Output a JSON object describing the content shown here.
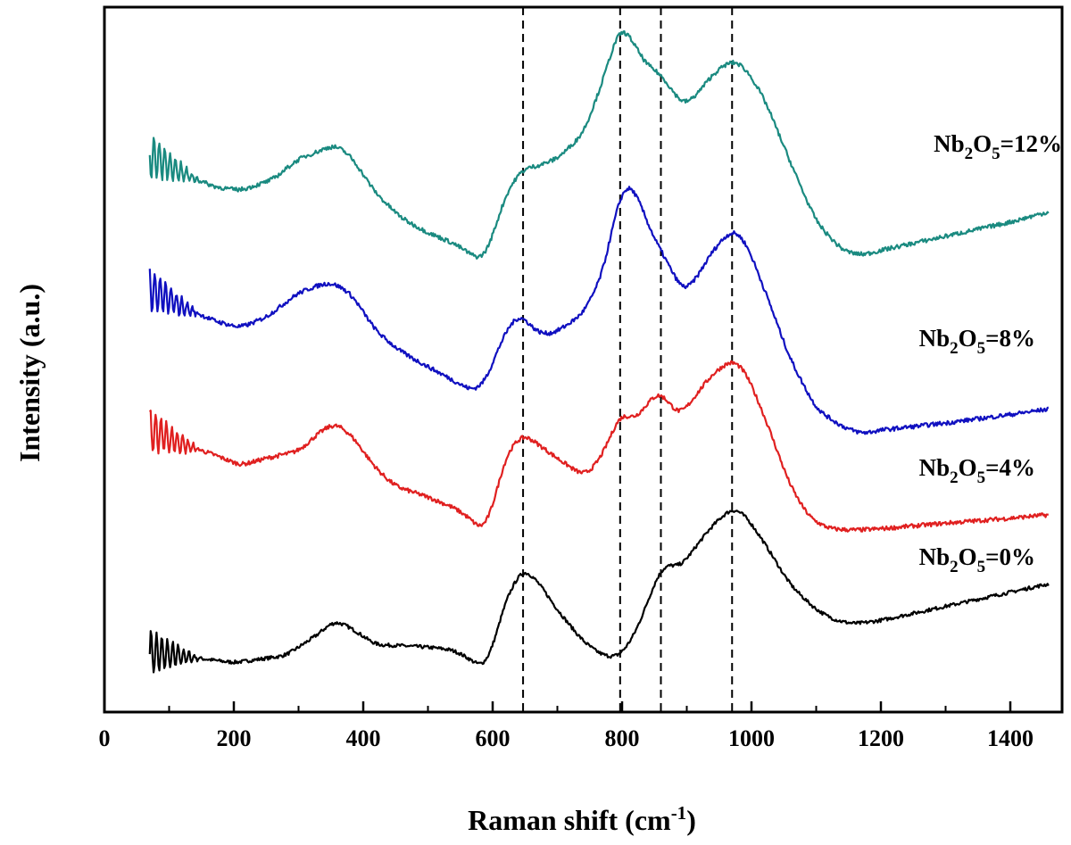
{
  "chart_data": {
    "type": "line",
    "xlabel": "Raman shift",
    "xlabel_unit_base": "cm",
    "xlabel_unit_exp": "-1",
    "ylabel": "Intensity (a.u.)",
    "xlim": [
      0,
      1480
    ],
    "ylim": [
      0,
      10
    ],
    "x_ticks": [
      0,
      200,
      400,
      600,
      800,
      1000,
      1200,
      1400
    ],
    "y_ticks_shown": false,
    "grid": false,
    "legend": "labels-beside-curves",
    "reference_lines": [
      647,
      797,
      860,
      970
    ],
    "series": [
      {
        "name": "0%",
        "label": {
          "prefix": "Nb",
          "sub1": "2",
          "mid": "O",
          "sub2": "5",
          "suffix": "=0%"
        },
        "color": "#000000",
        "noise": 0.025,
        "points": [
          [
            70,
            0.85
          ],
          [
            200,
            0.7
          ],
          [
            280,
            0.8
          ],
          [
            330,
            1.1
          ],
          [
            355,
            1.3
          ],
          [
            380,
            1.2
          ],
          [
            420,
            0.95
          ],
          [
            440,
            0.95
          ],
          [
            500,
            0.92
          ],
          [
            540,
            0.88
          ],
          [
            565,
            0.75
          ],
          [
            585,
            0.62
          ],
          [
            600,
            0.9
          ],
          [
            620,
            1.6
          ],
          [
            647,
            2.05
          ],
          [
            670,
            1.85
          ],
          [
            700,
            1.45
          ],
          [
            740,
            1.0
          ],
          [
            770,
            0.8
          ],
          [
            795,
            0.78
          ],
          [
            820,
            1.1
          ],
          [
            845,
            1.7
          ],
          [
            860,
            2.05
          ],
          [
            875,
            2.1
          ],
          [
            890,
            2.05
          ],
          [
            910,
            2.3
          ],
          [
            940,
            2.65
          ],
          [
            970,
            2.9
          ],
          [
            990,
            2.8
          ],
          [
            1020,
            2.4
          ],
          [
            1060,
            1.8
          ],
          [
            1100,
            1.45
          ],
          [
            1130,
            1.3
          ],
          [
            1160,
            1.25
          ],
          [
            1200,
            1.3
          ],
          [
            1300,
            1.5
          ],
          [
            1400,
            1.7
          ],
          [
            1460,
            1.82
          ]
        ]
      },
      {
        "name": "4%",
        "label": {
          "prefix": "Nb",
          "sub1": "2",
          "mid": "O",
          "sub2": "5",
          "suffix": "=4%"
        },
        "color": "#e02020",
        "noise": 0.03,
        "points": [
          [
            70,
            4.0
          ],
          [
            120,
            3.8
          ],
          [
            170,
            3.65
          ],
          [
            210,
            3.5
          ],
          [
            250,
            3.6
          ],
          [
            300,
            3.7
          ],
          [
            330,
            3.95
          ],
          [
            355,
            4.1
          ],
          [
            380,
            3.95
          ],
          [
            420,
            3.45
          ],
          [
            450,
            3.2
          ],
          [
            500,
            3.05
          ],
          [
            540,
            2.9
          ],
          [
            565,
            2.75
          ],
          [
            585,
            2.55
          ],
          [
            600,
            2.9
          ],
          [
            620,
            3.65
          ],
          [
            647,
            3.95
          ],
          [
            670,
            3.8
          ],
          [
            700,
            3.6
          ],
          [
            740,
            3.35
          ],
          [
            760,
            3.5
          ],
          [
            780,
            3.85
          ],
          [
            797,
            4.25
          ],
          [
            820,
            4.15
          ],
          [
            845,
            4.45
          ],
          [
            860,
            4.55
          ],
          [
            875,
            4.35
          ],
          [
            890,
            4.2
          ],
          [
            910,
            4.45
          ],
          [
            940,
            4.8
          ],
          [
            970,
            5.0
          ],
          [
            990,
            4.85
          ],
          [
            1020,
            4.2
          ],
          [
            1060,
            3.2
          ],
          [
            1090,
            2.75
          ],
          [
            1120,
            2.6
          ],
          [
            1160,
            2.58
          ],
          [
            1200,
            2.6
          ],
          [
            1300,
            2.68
          ],
          [
            1400,
            2.75
          ],
          [
            1460,
            2.8
          ]
        ]
      },
      {
        "name": "8%",
        "label": {
          "prefix": "Nb",
          "sub1": "2",
          "mid": "O",
          "sub2": "5",
          "suffix": "=8%"
        },
        "color": "#1010c0",
        "noise": 0.03,
        "points": [
          [
            70,
            6.0
          ],
          [
            120,
            5.75
          ],
          [
            170,
            5.55
          ],
          [
            210,
            5.45
          ],
          [
            250,
            5.6
          ],
          [
            300,
            5.95
          ],
          [
            330,
            6.05
          ],
          [
            350,
            6.1
          ],
          [
            380,
            5.95
          ],
          [
            420,
            5.4
          ],
          [
            460,
            5.1
          ],
          [
            500,
            4.9
          ],
          [
            540,
            4.7
          ],
          [
            570,
            4.55
          ],
          [
            590,
            4.7
          ],
          [
            610,
            5.2
          ],
          [
            630,
            5.55
          ],
          [
            645,
            5.65
          ],
          [
            660,
            5.45
          ],
          [
            680,
            5.35
          ],
          [
            700,
            5.4
          ],
          [
            740,
            5.65
          ],
          [
            770,
            6.2
          ],
          [
            790,
            7.1
          ],
          [
            807,
            7.55
          ],
          [
            825,
            7.3
          ],
          [
            845,
            6.8
          ],
          [
            860,
            6.55
          ],
          [
            880,
            6.2
          ],
          [
            895,
            5.95
          ],
          [
            915,
            6.15
          ],
          [
            940,
            6.55
          ],
          [
            970,
            6.85
          ],
          [
            990,
            6.7
          ],
          [
            1020,
            6.0
          ],
          [
            1060,
            5.0
          ],
          [
            1100,
            4.3
          ],
          [
            1140,
            4.05
          ],
          [
            1170,
            3.95
          ],
          [
            1200,
            4.0
          ],
          [
            1300,
            4.1
          ],
          [
            1400,
            4.22
          ],
          [
            1460,
            4.3
          ]
        ]
      },
      {
        "name": "12%",
        "label": {
          "prefix": "Nb",
          "sub1": "2",
          "mid": "O",
          "sub2": "5",
          "suffix": "=12%"
        },
        "color": "#1a8a80",
        "noise": 0.03,
        "points": [
          [
            70,
            7.9
          ],
          [
            120,
            7.65
          ],
          [
            170,
            7.45
          ],
          [
            210,
            7.4
          ],
          [
            260,
            7.55
          ],
          [
            300,
            7.85
          ],
          [
            330,
            7.95
          ],
          [
            355,
            8.05
          ],
          [
            380,
            7.9
          ],
          [
            420,
            7.35
          ],
          [
            460,
            7.0
          ],
          [
            500,
            6.8
          ],
          [
            540,
            6.65
          ],
          [
            565,
            6.5
          ],
          [
            585,
            6.4
          ],
          [
            600,
            6.75
          ],
          [
            620,
            7.35
          ],
          [
            645,
            7.7
          ],
          [
            670,
            7.75
          ],
          [
            700,
            7.85
          ],
          [
            740,
            8.2
          ],
          [
            770,
            8.95
          ],
          [
            790,
            9.55
          ],
          [
            797,
            9.75
          ],
          [
            815,
            9.55
          ],
          [
            835,
            9.2
          ],
          [
            860,
            9.05
          ],
          [
            875,
            8.85
          ],
          [
            895,
            8.6
          ],
          [
            915,
            8.75
          ],
          [
            940,
            9.05
          ],
          [
            970,
            9.25
          ],
          [
            990,
            9.15
          ],
          [
            1020,
            8.7
          ],
          [
            1060,
            7.8
          ],
          [
            1100,
            6.95
          ],
          [
            1140,
            6.55
          ],
          [
            1170,
            6.48
          ],
          [
            1200,
            6.55
          ],
          [
            1300,
            6.75
          ],
          [
            1400,
            6.95
          ],
          [
            1460,
            7.1
          ]
        ]
      }
    ]
  }
}
